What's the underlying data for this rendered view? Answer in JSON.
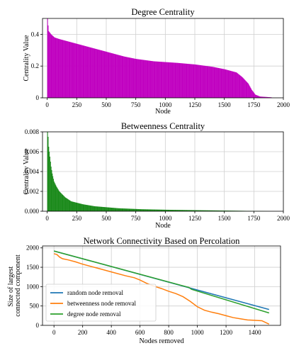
{
  "chart_data": [
    {
      "type": "bar",
      "title": "Degree Centrality",
      "xlabel": "Node",
      "ylabel": "Centrality Value",
      "xlim": [
        -40,
        2000
      ],
      "ylim": [
        0,
        0.5
      ],
      "xticks": [
        0,
        250,
        500,
        750,
        1000,
        1250,
        1500,
        1750,
        2000
      ],
      "yticks": [
        0.0,
        0.2,
        0.4
      ],
      "ytick_labels": [
        "0",
        "0.2",
        "0.4"
      ],
      "color": "#c000c0",
      "grid": true,
      "n_nodes": 1900,
      "curve": [
        [
          0,
          0.5
        ],
        [
          3,
          0.47
        ],
        [
          10,
          0.42
        ],
        [
          30,
          0.4
        ],
        [
          60,
          0.38
        ],
        [
          100,
          0.37
        ],
        [
          150,
          0.36
        ],
        [
          250,
          0.34
        ],
        [
          400,
          0.31
        ],
        [
          500,
          0.29
        ],
        [
          650,
          0.26
        ],
        [
          750,
          0.245
        ],
        [
          900,
          0.23
        ],
        [
          1000,
          0.225
        ],
        [
          1100,
          0.22
        ],
        [
          1250,
          0.21
        ],
        [
          1400,
          0.195
        ],
        [
          1500,
          0.18
        ],
        [
          1550,
          0.17
        ],
        [
          1600,
          0.16
        ],
        [
          1650,
          0.13
        ],
        [
          1700,
          0.09
        ],
        [
          1730,
          0.05
        ],
        [
          1760,
          0.02
        ],
        [
          1800,
          0.008
        ],
        [
          1900,
          0.003
        ]
      ]
    },
    {
      "type": "bar",
      "title": "Betweenness Centrality",
      "xlabel": "Node",
      "ylabel": "Centrality Value",
      "xlim": [
        -40,
        2000
      ],
      "ylim": [
        0,
        0.008
      ],
      "xticks": [
        0,
        250,
        500,
        750,
        1000,
        1250,
        1500,
        1750,
        2000
      ],
      "yticks": [
        0.0,
        0.002,
        0.004,
        0.006,
        0.008
      ],
      "ytick_labels": [
        "0.000",
        "0.002",
        "0.004",
        "0.006",
        "0.008"
      ],
      "color": "#1a8a1a",
      "grid": true,
      "n_nodes": 1900,
      "curve": [
        [
          0,
          0.008
        ],
        [
          5,
          0.0075
        ],
        [
          10,
          0.0065
        ],
        [
          20,
          0.0055
        ],
        [
          30,
          0.0045
        ],
        [
          40,
          0.0038
        ],
        [
          55,
          0.003
        ],
        [
          75,
          0.0025
        ],
        [
          100,
          0.002
        ],
        [
          150,
          0.0014
        ],
        [
          200,
          0.001
        ],
        [
          300,
          0.0007
        ],
        [
          400,
          0.0005
        ],
        [
          600,
          0.0003
        ],
        [
          800,
          0.0002
        ],
        [
          1000,
          0.00015
        ],
        [
          1300,
          0.0001
        ],
        [
          1600,
          5e-05
        ],
        [
          1900,
          0.0
        ]
      ]
    },
    {
      "type": "line",
      "title": "Network Connectivity Based on Percolation",
      "xlabel": "Nodes removed",
      "ylabel": "Size of largest\nconnected component",
      "xlim": [
        -80,
        1580
      ],
      "ylim": [
        0,
        2050
      ],
      "xticks": [
        0,
        200,
        400,
        600,
        800,
        1000,
        1200,
        1400
      ],
      "yticks": [
        0,
        500,
        1000,
        1500,
        2000
      ],
      "grid": true,
      "legend_position": "lower-left",
      "series": [
        {
          "name": "random node removal",
          "color": "#1f77b4",
          "x": [
            0,
            1500
          ],
          "y": [
            1920,
            410
          ]
        },
        {
          "name": "betweenness node removal",
          "color": "#ff7f0e",
          "x": [
            0,
            20,
            40,
            60,
            100,
            150,
            200,
            300,
            400,
            500,
            560,
            600,
            650,
            700,
            750,
            800,
            850,
            900,
            950,
            1000,
            1050,
            1100,
            1150,
            1200,
            1250,
            1300,
            1350,
            1400,
            1450,
            1500
          ],
          "y": [
            1850,
            1830,
            1760,
            1720,
            1690,
            1640,
            1580,
            1480,
            1380,
            1280,
            1230,
            1170,
            1080,
            1010,
            950,
            880,
            820,
            740,
            620,
            480,
            390,
            340,
            300,
            250,
            200,
            170,
            140,
            130,
            120,
            30
          ]
        },
        {
          "name": "degree node removal",
          "color": "#2ca02c",
          "x": [
            0,
            940,
            960,
            1500
          ],
          "y": [
            1920,
            980,
            930,
            320
          ]
        }
      ]
    }
  ]
}
